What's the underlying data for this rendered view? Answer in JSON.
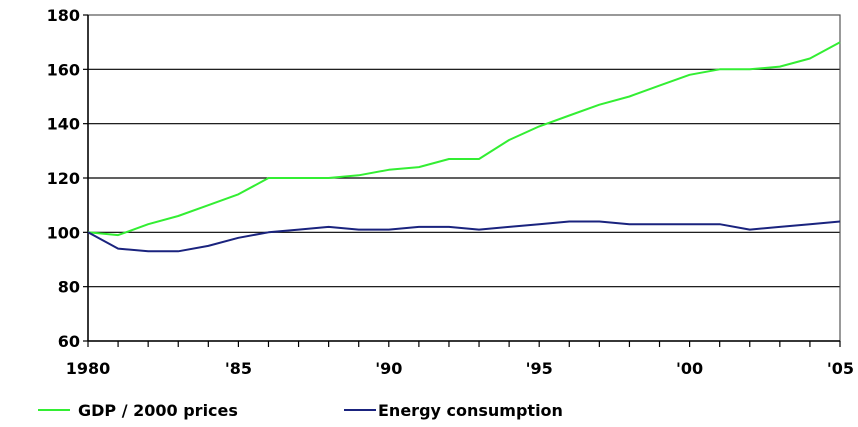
{
  "chart_data": {
    "type": "line",
    "x": [
      1980,
      1981,
      1982,
      1983,
      1984,
      1985,
      1986,
      1987,
      1988,
      1989,
      1990,
      1991,
      1992,
      1993,
      1994,
      1995,
      1996,
      1997,
      1998,
      1999,
      2000,
      2001,
      2002,
      2003,
      2004,
      2005
    ],
    "x_ticks": [
      {
        "value": 1980,
        "label": "1980"
      },
      {
        "value": 1985,
        "label": "'85"
      },
      {
        "value": 1990,
        "label": "'90"
      },
      {
        "value": 1995,
        "label": "'95"
      },
      {
        "value": 2000,
        "label": "'00"
      },
      {
        "value": 2005,
        "label": "'05"
      }
    ],
    "xlim": [
      1980,
      2005
    ],
    "ylim": [
      60,
      180
    ],
    "y_ticks": [
      60,
      80,
      100,
      120,
      140,
      160,
      180
    ],
    "series": [
      {
        "name": "GDP / 2000 prices",
        "color": "#33ee33",
        "values": [
          100,
          99,
          103,
          106,
          110,
          114,
          120,
          120,
          120,
          121,
          123,
          124,
          127,
          127,
          134,
          139,
          143,
          147,
          150,
          154,
          158,
          160,
          160,
          161,
          164,
          170
        ]
      },
      {
        "name": "Energy consumption",
        "color": "#1a237e",
        "values": [
          100,
          94,
          93,
          93,
          95,
          98,
          100,
          101,
          102,
          101,
          101,
          102,
          102,
          101,
          102,
          103,
          104,
          104,
          103,
          103,
          103,
          103,
          101,
          102,
          103,
          104
        ]
      }
    ],
    "grid": "horizontal",
    "legend_position": "bottom-left"
  }
}
